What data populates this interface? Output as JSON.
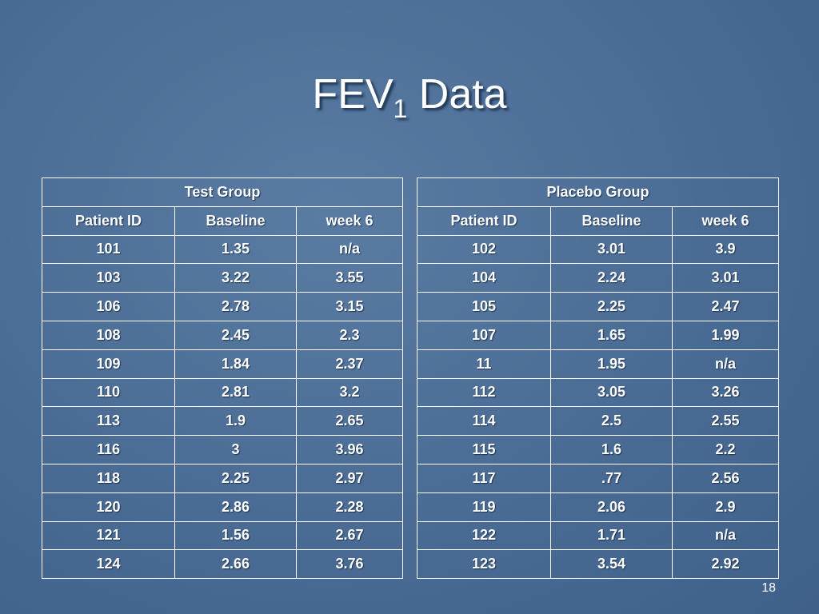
{
  "title": {
    "main": "FEV",
    "subscript": "1",
    "rest": "Data"
  },
  "tables": [
    {
      "group": "Test Group",
      "header": [
        "Patient ID",
        "Baseline",
        "week 6"
      ],
      "rows": [
        [
          "101",
          "1.35",
          "n/a"
        ],
        [
          "103",
          "3.22",
          "3.55"
        ],
        [
          "106",
          "2.78",
          "3.15"
        ],
        [
          "108",
          "2.45",
          "2.3"
        ],
        [
          "109",
          "1.84",
          "2.37"
        ],
        [
          "110",
          "2.81",
          "3.2"
        ],
        [
          "113",
          "1.9",
          "2.65"
        ],
        [
          "116",
          "3",
          "3.96"
        ],
        [
          "118",
          "2.25",
          "2.97"
        ],
        [
          "120",
          "2.86",
          "2.28"
        ],
        [
          "121",
          "1.56",
          "2.67"
        ],
        [
          "124",
          "2.66",
          "3.76"
        ]
      ]
    },
    {
      "group": "Placebo Group",
      "header": [
        "Patient ID",
        "Baseline",
        "week 6"
      ],
      "rows": [
        [
          "102",
          "3.01",
          "3.9"
        ],
        [
          "104",
          "2.24",
          "3.01"
        ],
        [
          "105",
          "2.25",
          "2.47"
        ],
        [
          "107",
          "1.65",
          "1.99"
        ],
        [
          "11",
          "1.95",
          "n/a"
        ],
        [
          "112",
          "3.05",
          "3.26"
        ],
        [
          "114",
          "2.5",
          "2.55"
        ],
        [
          "115",
          "1.6",
          "2.2"
        ],
        [
          "117",
          ".77",
          "2.56"
        ],
        [
          "119",
          "2.06",
          "2.9"
        ],
        [
          "122",
          "1.71",
          "n/a"
        ],
        [
          "123",
          "3.54",
          "2.92"
        ]
      ]
    }
  ],
  "page_number": "18"
}
